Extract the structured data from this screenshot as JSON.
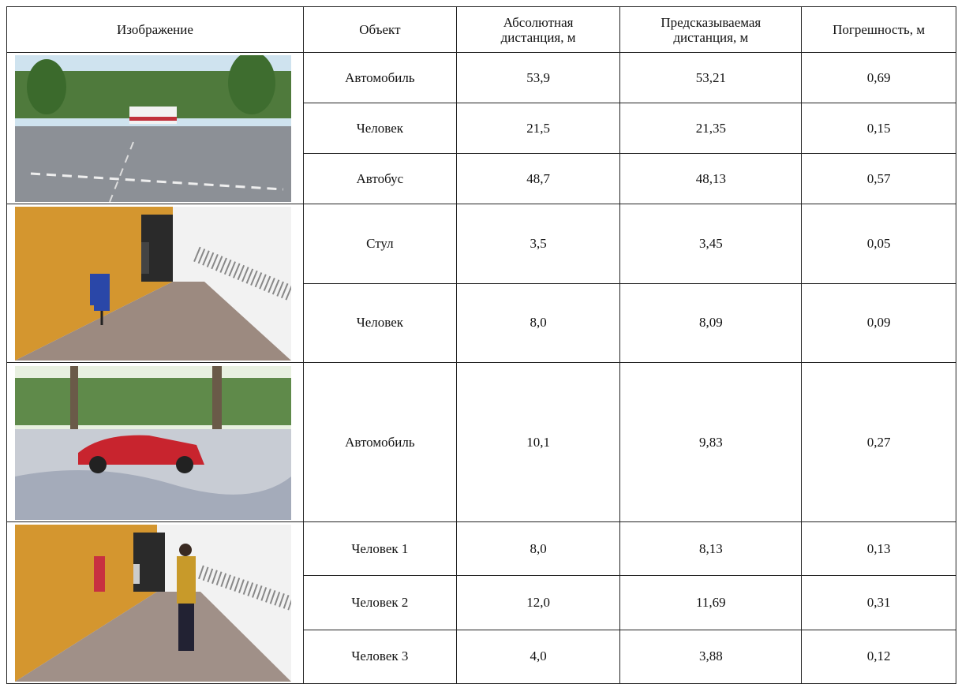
{
  "table": {
    "header": [
      "Изображение",
      "Объект",
      "Абсолютная дистанция, м",
      "Предсказываемая дистанция, м",
      "Погрешность, м"
    ],
    "groups": [
      {
        "rows": [
          [
            "Автомобиль",
            "53,9",
            "53,21",
            "0,69"
          ],
          [
            "Человек",
            "21,5",
            "21,35",
            "0,15"
          ],
          [
            "Автобус",
            "48,7",
            "48,13",
            "0,57"
          ]
        ]
      },
      {
        "rows": [
          [
            "Стул",
            "3,5",
            "3,45",
            "0,05"
          ],
          [
            "Человек",
            "8,0",
            "8,09",
            "0,09"
          ]
        ]
      },
      {
        "rows": [
          [
            "Автомобиль",
            "10,1",
            "9,83",
            "0,27"
          ]
        ]
      },
      {
        "rows": [
          [
            "Человек 1",
            "8,0",
            "8,13",
            "0,13"
          ],
          [
            "Человек 2",
            "12,0",
            "11,69",
            "0,31"
          ],
          [
            "Человек 3",
            "4,0",
            "3,88",
            "0,12"
          ]
        ]
      }
    ]
  }
}
